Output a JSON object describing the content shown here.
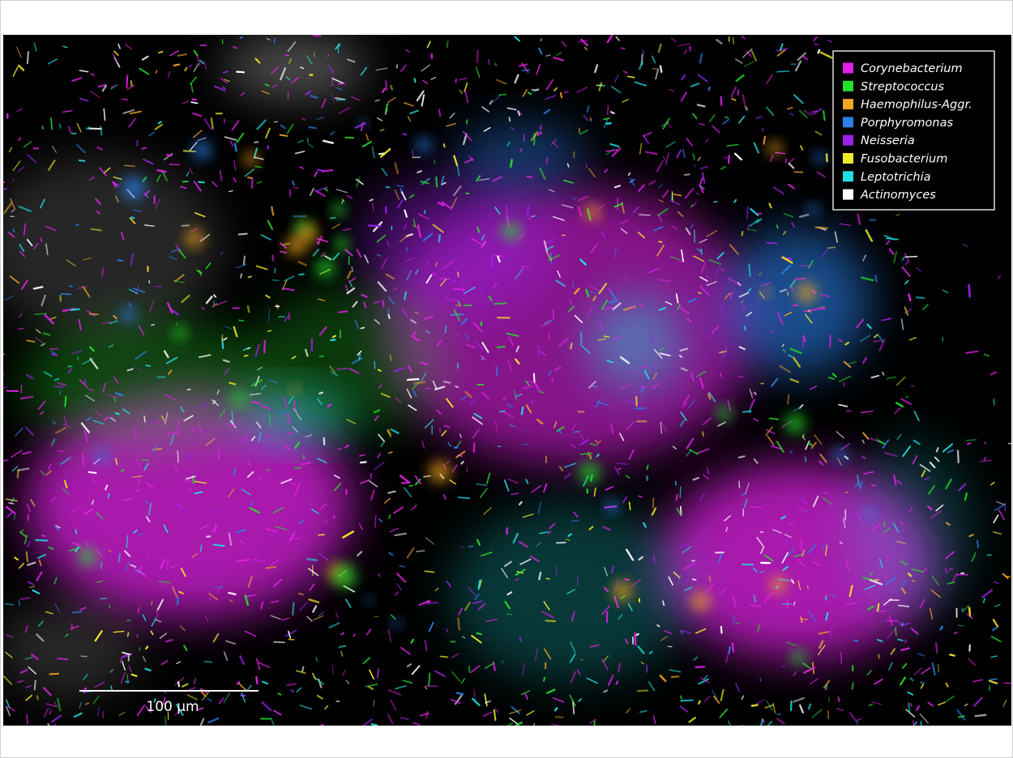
{
  "image": {
    "legend": [
      {
        "label": "Corynebacterium",
        "color": "#e021e6"
      },
      {
        "label": "Streptococcus",
        "color": "#25e02a"
      },
      {
        "label": "Haemophilus-Aggr.",
        "color": "#f2a424"
      },
      {
        "label": "Porphyromonas",
        "color": "#2a7fe8"
      },
      {
        "label": "Neisseria",
        "color": "#9a22e8"
      },
      {
        "label": "Fusobacterium",
        "color": "#f2ea26"
      },
      {
        "label": "Leptotrichia",
        "color": "#22dde0"
      },
      {
        "label": "Actinomyces",
        "color": "#ffffff"
      }
    ],
    "scale_bar": {
      "label": "100 µm"
    }
  }
}
